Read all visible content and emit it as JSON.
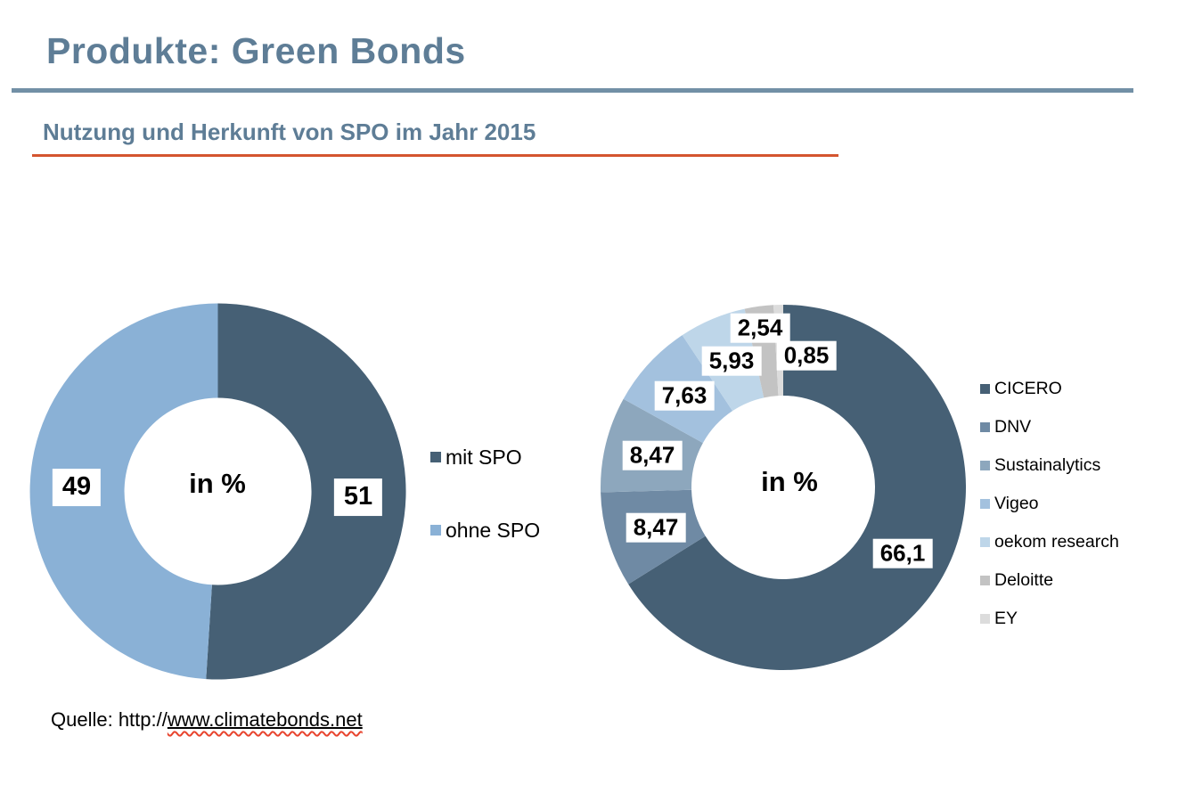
{
  "slide": {
    "title": "Produkte: Green Bonds",
    "subtitle": "Nutzung und Herkunft von SPO im Jahr 2015",
    "source": {
      "prefix": "Quelle: http://",
      "link": "www.climatebonds.net"
    }
  },
  "colors": {
    "title_text": "#5e7d96",
    "title_rule": "#7290a6",
    "subtitle_rule": "#d4552f",
    "label_bg": "#ffffff",
    "label_text": "#000000"
  },
  "chart_data": [
    {
      "type": "donut",
      "center_label": "in %",
      "legend_position": "right",
      "series": [
        {
          "name": "mit SPO",
          "value": 51,
          "label": "51",
          "color": "#466075"
        },
        {
          "name": "ohne SPO",
          "value": 49,
          "label": "49",
          "color": "#8ab1d6"
        }
      ]
    },
    {
      "type": "donut",
      "center_label": "in %",
      "legend_position": "right",
      "series": [
        {
          "name": "CICERO",
          "value": 66.1,
          "label": "66,1",
          "color": "#466075"
        },
        {
          "name": "DNV",
          "value": 8.47,
          "label": "8,47",
          "color": "#6f8aa4"
        },
        {
          "name": "Sustainalytics",
          "value": 8.47,
          "label": "8,47",
          "color": "#8da7bd"
        },
        {
          "name": "Vigeo",
          "value": 7.63,
          "label": "7,63",
          "color": "#a3c1de"
        },
        {
          "name": "oekom research",
          "value": 5.93,
          "label": "5,93",
          "color": "#bed6e9"
        },
        {
          "name": "Deloitte",
          "value": 2.54,
          "label": "2,54",
          "color": "#c3c3c3"
        },
        {
          "name": "EY",
          "value": 0.85,
          "label": "0,85",
          "color": "#dcdcdc"
        }
      ]
    }
  ]
}
